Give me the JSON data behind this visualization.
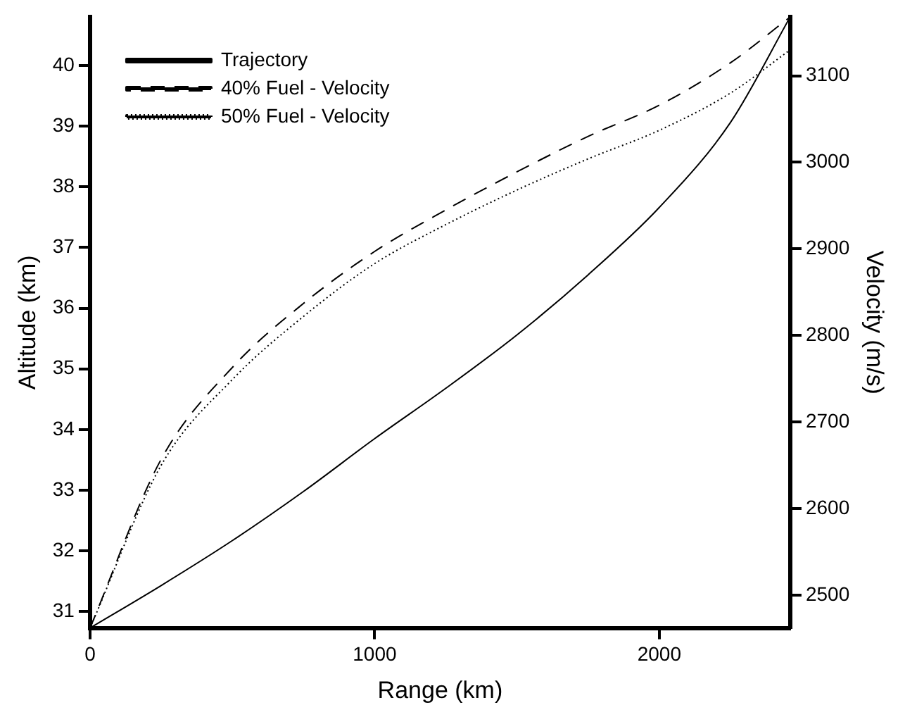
{
  "chart_data": {
    "type": "line",
    "xlabel": "Range (km)",
    "ylabel": "Altitude (km)",
    "y2label": "Velocity (m/s)",
    "xlim": [
      0,
      2460
    ],
    "xticks": [
      0,
      1000,
      2000
    ],
    "ylim": [
      30.73,
      40.8
    ],
    "yticks": [
      31,
      32,
      33,
      34,
      35,
      36,
      37,
      38,
      39,
      40
    ],
    "y2lim": [
      2462,
      3168
    ],
    "y2ticks": [
      2500,
      2600,
      2700,
      2800,
      2900,
      3000,
      3100
    ],
    "grid": false,
    "legend": "top left",
    "marker": "none",
    "series": [
      {
        "name": "Trajectory",
        "color": "#000000",
        "line_style": "solid",
        "x": [
          0,
          250,
          500,
          750,
          1000,
          1250,
          1500,
          1750,
          2000,
          2250,
          2460
        ],
        "values": [
          30.73,
          31.43,
          32.17,
          32.98,
          33.85,
          34.68,
          35.56,
          36.55,
          37.66,
          39.06,
          40.8
        ]
      },
      {
        "name": "40% Fuel - Velocity",
        "color": "#000000",
        "line_style": "dashed",
        "axis": "y2",
        "x": [
          0,
          250,
          500,
          750,
          1000,
          1250,
          1500,
          1750,
          2000,
          2250,
          2460
        ],
        "values": [
          2462,
          2657,
          2763,
          2837,
          2897,
          2945,
          2989,
          3030,
          3066,
          3115,
          3168
        ]
      },
      {
        "name": "50% Fuel - Velocity",
        "color": "#000000",
        "line_style": "dotted",
        "axis": "y2",
        "x": [
          0,
          250,
          500,
          750,
          1000,
          1250,
          1500,
          1750,
          2000,
          2250,
          2460
        ],
        "values": [
          2462,
          2650,
          2749,
          2822,
          2883,
          2928,
          2968,
          3004,
          3037,
          3080,
          3130
        ]
      }
    ]
  }
}
